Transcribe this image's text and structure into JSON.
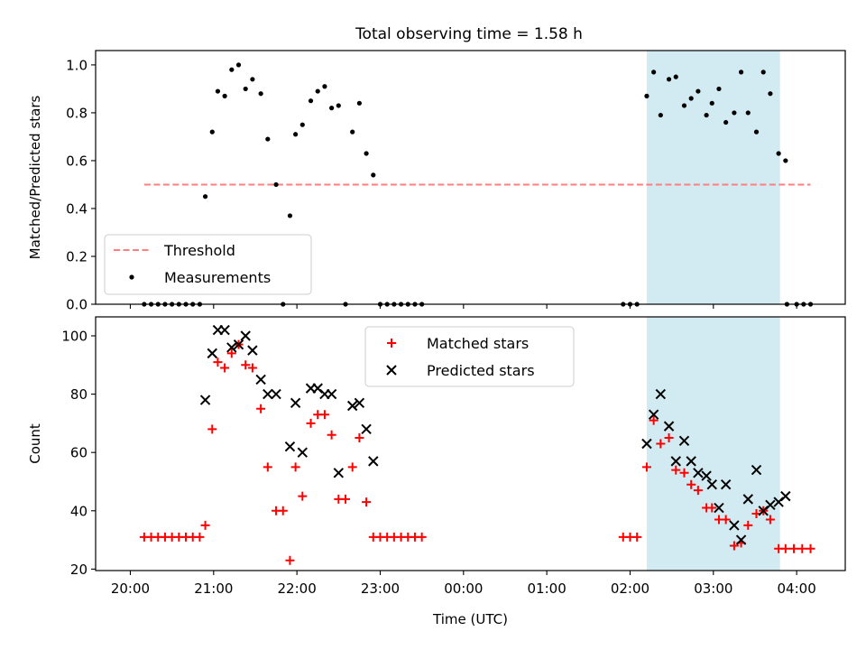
{
  "figure_title": "Total observing time = 1.58 h",
  "colors": {
    "highlight": "#add8e6",
    "threshold": "#ff7f7f",
    "measurement": "#000000",
    "matched": "#ff0000",
    "predicted": "#000000"
  },
  "chart_data": [
    {
      "type": "scatter",
      "title": "Total observing time = 1.58 h",
      "xlabel": "",
      "ylabel": "Matched/Predicted stars",
      "ylim": [
        0,
        1.06
      ],
      "yticks": [
        0.0,
        0.2,
        0.4,
        0.6,
        0.8,
        1.0
      ],
      "ytick_labels": [
        "0.0",
        "0.2",
        "0.4",
        "0.6",
        "0.8",
        "1.0"
      ],
      "xlim_minutes_from_20_00": [
        -25,
        515
      ],
      "highlight_span": {
        "start": "02:12",
        "end": "03:48"
      },
      "threshold": {
        "name": "Threshold",
        "value": 0.5,
        "x_start": "20:10",
        "x_end": "04:10"
      },
      "legend": {
        "position": "lower-left",
        "entries": [
          "Threshold",
          "Measurements"
        ]
      },
      "series": [
        {
          "name": "Measurements",
          "points": [
            [
              "20:10",
              0
            ],
            [
              "20:15",
              0
            ],
            [
              "20:20",
              0
            ],
            [
              "20:25",
              0
            ],
            [
              "20:30",
              0
            ],
            [
              "20:35",
              0
            ],
            [
              "20:40",
              0
            ],
            [
              "20:45",
              0
            ],
            [
              "20:50",
              0
            ],
            [
              "20:54",
              0.45
            ],
            [
              "20:59",
              0.72
            ],
            [
              "21:03",
              0.89
            ],
            [
              "21:08",
              0.87
            ],
            [
              "21:13",
              0.98
            ],
            [
              "21:18",
              1.0
            ],
            [
              "21:23",
              0.9
            ],
            [
              "21:28",
              0.94
            ],
            [
              "21:34",
              0.88
            ],
            [
              "21:39",
              0.69
            ],
            [
              "21:45",
              0.5
            ],
            [
              "21:55",
              0.37
            ],
            [
              "21:50",
              0
            ],
            [
              "21:59",
              0.71
            ],
            [
              "22:04",
              0.75
            ],
            [
              "22:10",
              0.85
            ],
            [
              "22:15",
              0.89
            ],
            [
              "22:20",
              0.91
            ],
            [
              "22:25",
              0.82
            ],
            [
              "22:30",
              0.83
            ],
            [
              "22:35",
              0
            ],
            [
              "22:40",
              0.72
            ],
            [
              "22:45",
              0.84
            ],
            [
              "22:50",
              0.63
            ],
            [
              "22:55",
              0.54
            ],
            [
              "23:00",
              0
            ],
            [
              "23:05",
              0
            ],
            [
              "23:10",
              0
            ],
            [
              "23:15",
              0
            ],
            [
              "23:20",
              0
            ],
            [
              "23:25",
              0
            ],
            [
              "23:30",
              0
            ],
            [
              "01:55",
              0
            ],
            [
              "02:00",
              0
            ],
            [
              "02:05",
              0
            ],
            [
              "02:12",
              0.87
            ],
            [
              "02:17",
              0.97
            ],
            [
              "02:22",
              0.79
            ],
            [
              "02:28",
              0.94
            ],
            [
              "02:33",
              0.95
            ],
            [
              "02:39",
              0.83
            ],
            [
              "02:44",
              0.86
            ],
            [
              "02:49",
              0.89
            ],
            [
              "02:55",
              0.79
            ],
            [
              "02:59",
              0.84
            ],
            [
              "03:04",
              0.9
            ],
            [
              "03:09",
              0.76
            ],
            [
              "03:15",
              0.8
            ],
            [
              "03:20",
              0.97
            ],
            [
              "03:25",
              0.8
            ],
            [
              "03:31",
              0.72
            ],
            [
              "03:36",
              0.97
            ],
            [
              "03:41",
              0.88
            ],
            [
              "03:47",
              0.63
            ],
            [
              "03:52",
              0.6
            ],
            [
              "03:53",
              0
            ],
            [
              "04:00",
              0
            ],
            [
              "04:05",
              0
            ],
            [
              "04:10",
              0
            ]
          ]
        }
      ]
    },
    {
      "type": "scatter",
      "title": "",
      "xlabel": "Time (UTC)",
      "ylabel": "Count",
      "ylim": [
        19.5,
        106.5
      ],
      "yticks": [
        20,
        40,
        60,
        80,
        100
      ],
      "ytick_labels": [
        "20",
        "40",
        "60",
        "80",
        "100"
      ],
      "xticks": [
        "20:00",
        "21:00",
        "22:00",
        "23:00",
        "00:00",
        "01:00",
        "02:00",
        "03:00",
        "04:00"
      ],
      "xlim_minutes_from_20_00": [
        -25,
        515
      ],
      "highlight_span": {
        "start": "02:12",
        "end": "03:48"
      },
      "legend": {
        "position": "top-center",
        "entries": [
          "Matched stars",
          "Predicted stars"
        ]
      },
      "series": [
        {
          "name": "Matched stars",
          "marker": "plus",
          "points": [
            [
              "20:10",
              31
            ],
            [
              "20:15",
              31
            ],
            [
              "20:20",
              31
            ],
            [
              "20:25",
              31
            ],
            [
              "20:30",
              31
            ],
            [
              "20:35",
              31
            ],
            [
              "20:40",
              31
            ],
            [
              "20:45",
              31
            ],
            [
              "20:50",
              31
            ],
            [
              "20:54",
              35
            ],
            [
              "20:59",
              68
            ],
            [
              "21:03",
              91
            ],
            [
              "21:08",
              89
            ],
            [
              "21:13",
              94
            ],
            [
              "21:18",
              97
            ],
            [
              "21:23",
              90
            ],
            [
              "21:28",
              89
            ],
            [
              "21:34",
              75
            ],
            [
              "21:39",
              55
            ],
            [
              "21:45",
              40
            ],
            [
              "21:50",
              40
            ],
            [
              "21:55",
              23
            ],
            [
              "21:59",
              55
            ],
            [
              "22:04",
              45
            ],
            [
              "22:10",
              70
            ],
            [
              "22:15",
              73
            ],
            [
              "22:20",
              73
            ],
            [
              "22:25",
              66
            ],
            [
              "22:30",
              44
            ],
            [
              "22:35",
              44
            ],
            [
              "22:40",
              55
            ],
            [
              "22:45",
              65
            ],
            [
              "22:50",
              43
            ],
            [
              "22:55",
              31
            ],
            [
              "23:00",
              31
            ],
            [
              "23:05",
              31
            ],
            [
              "23:10",
              31
            ],
            [
              "23:15",
              31
            ],
            [
              "23:20",
              31
            ],
            [
              "23:25",
              31
            ],
            [
              "23:30",
              31
            ],
            [
              "01:55",
              31
            ],
            [
              "02:00",
              31
            ],
            [
              "02:05",
              31
            ],
            [
              "02:12",
              55
            ],
            [
              "02:17",
              71
            ],
            [
              "02:22",
              63
            ],
            [
              "02:28",
              65
            ],
            [
              "02:33",
              54
            ],
            [
              "02:39",
              53
            ],
            [
              "02:44",
              49
            ],
            [
              "02:49",
              47
            ],
            [
              "02:55",
              41
            ],
            [
              "02:59",
              41
            ],
            [
              "03:04",
              37
            ],
            [
              "03:09",
              37
            ],
            [
              "03:15",
              28
            ],
            [
              "03:20",
              29
            ],
            [
              "03:25",
              35
            ],
            [
              "03:31",
              39
            ],
            [
              "03:36",
              40
            ],
            [
              "03:41",
              37
            ],
            [
              "03:47",
              27
            ],
            [
              "03:52",
              27
            ],
            [
              "03:58",
              27
            ],
            [
              "04:04",
              27
            ],
            [
              "04:10",
              27
            ]
          ]
        },
        {
          "name": "Predicted stars",
          "marker": "x",
          "points": [
            [
              "20:54",
              78
            ],
            [
              "20:59",
              94
            ],
            [
              "21:03",
              102
            ],
            [
              "21:08",
              102
            ],
            [
              "21:13",
              96
            ],
            [
              "21:18",
              97
            ],
            [
              "21:23",
              100
            ],
            [
              "21:28",
              95
            ],
            [
              "21:34",
              85
            ],
            [
              "21:39",
              80
            ],
            [
              "21:45",
              80
            ],
            [
              "21:55",
              62
            ],
            [
              "21:59",
              77
            ],
            [
              "22:04",
              60
            ],
            [
              "22:10",
              82
            ],
            [
              "22:15",
              82
            ],
            [
              "22:20",
              80
            ],
            [
              "22:25",
              80
            ],
            [
              "22:30",
              53
            ],
            [
              "22:40",
              76
            ],
            [
              "22:45",
              77
            ],
            [
              "22:50",
              68
            ],
            [
              "22:55",
              57
            ],
            [
              "02:12",
              63
            ],
            [
              "02:17",
              73
            ],
            [
              "02:22",
              80
            ],
            [
              "02:28",
              69
            ],
            [
              "02:33",
              57
            ],
            [
              "02:39",
              64
            ],
            [
              "02:44",
              57
            ],
            [
              "02:49",
              53
            ],
            [
              "02:55",
              52
            ],
            [
              "02:59",
              49
            ],
            [
              "03:04",
              41
            ],
            [
              "03:09",
              49
            ],
            [
              "03:15",
              35
            ],
            [
              "03:20",
              30
            ],
            [
              "03:25",
              44
            ],
            [
              "03:31",
              54
            ],
            [
              "03:36",
              40
            ],
            [
              "03:41",
              42
            ],
            [
              "03:47",
              43
            ],
            [
              "03:52",
              45
            ]
          ]
        }
      ]
    }
  ]
}
